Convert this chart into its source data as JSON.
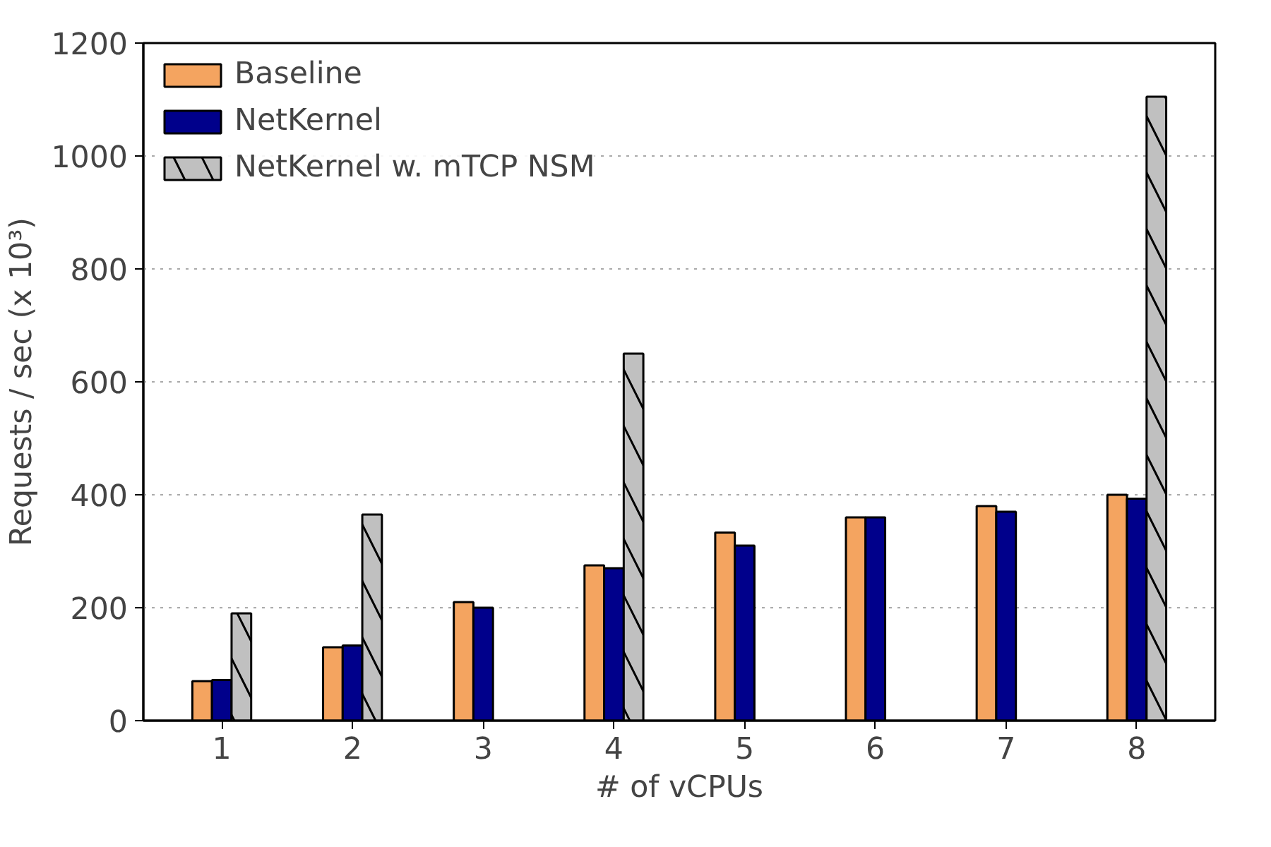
{
  "chart_data": {
    "type": "bar",
    "xlabel": "# of vCPUs",
    "ylabel": "Requests / sec (x 10³)",
    "categories": [
      "1",
      "2",
      "3",
      "4",
      "5",
      "6",
      "7",
      "8"
    ],
    "series": [
      {
        "name": "Baseline",
        "color": "#f4a460",
        "values": [
          70,
          130,
          210,
          275,
          333,
          360,
          380,
          400
        ]
      },
      {
        "name": "NetKernel",
        "color": "#00008b",
        "values": [
          72,
          133,
          200,
          270,
          310,
          360,
          370,
          393
        ]
      },
      {
        "name": "NetKernel w. mTCP NSM",
        "color": "#c0c0c0",
        "values": [
          190,
          365,
          null,
          650,
          null,
          null,
          null,
          1105
        ]
      }
    ],
    "ylim": [
      0,
      1200
    ],
    "yticks": [
      0,
      200,
      400,
      600,
      800,
      1000,
      1200
    ],
    "grid": "y",
    "legend": "top left"
  }
}
